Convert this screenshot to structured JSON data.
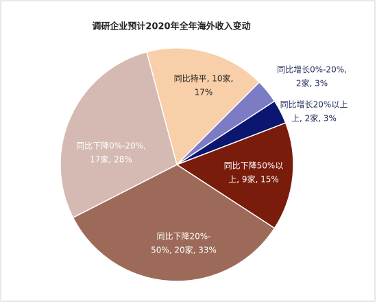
{
  "chart_data": {
    "type": "pie",
    "title": "调研企业预计2020年全年海外收入变动",
    "first_slice_angle": 345,
    "categories": [
      "同比持平",
      "同比增长0%-20%",
      "同比增长20%以上",
      "同比下降50%以上",
      "同比下降20%-50%",
      "同比下降0%-20%"
    ],
    "values": [
      10,
      2,
      2,
      9,
      20,
      17
    ],
    "percents": [
      17,
      3,
      3,
      15,
      33,
      28
    ],
    "value_labels": [
      [
        "同比持平, 10家,",
        "17%"
      ],
      [
        "同比增长0%-20%,",
        "2家, 3%"
      ],
      [
        "同比增长20%以上",
        "上, 2家, 3%"
      ],
      [
        "同比下降50%以",
        "上, 9家, 15%"
      ],
      [
        "同比下降20%-",
        "50%, 20家, 33%"
      ],
      [
        "同比下降0%-20%,",
        "17家, 28%"
      ]
    ],
    "colors": [
      "#f8cfa9",
      "#7b7cc3",
      "#0b1670",
      "#7a1c0c",
      "#9d6a59",
      "#d4bab2"
    ]
  }
}
